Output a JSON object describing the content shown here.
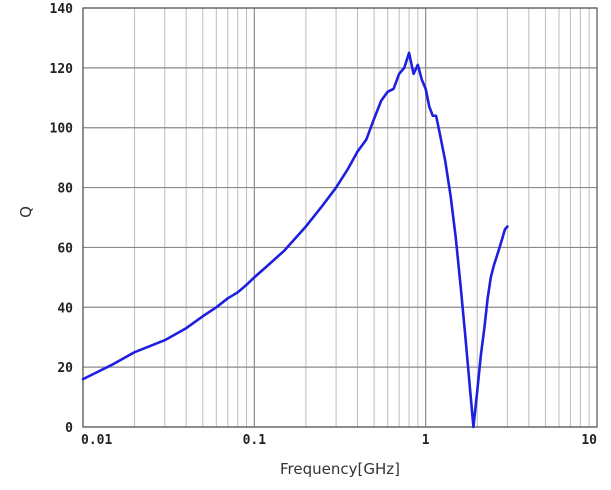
{
  "chart_data": {
    "type": "line",
    "title": "",
    "xlabel": "Frequency[GHz]",
    "ylabel": "Q",
    "x_scale": "log",
    "xlim": [
      0.01,
      10
    ],
    "ylim": [
      0,
      140
    ],
    "x_ticks": [
      "0.01",
      "0.1",
      "1",
      "10"
    ],
    "y_ticks": [
      "0",
      "20",
      "40",
      "60",
      "80",
      "100",
      "120",
      "140"
    ],
    "grid": true,
    "series": [
      {
        "color": "#1f1fe0",
        "x": [
          0.01,
          0.015,
          0.02,
          0.03,
          0.04,
          0.05,
          0.06,
          0.07,
          0.08,
          0.09,
          0.1,
          0.12,
          0.15,
          0.2,
          0.25,
          0.3,
          0.35,
          0.4,
          0.45,
          0.5,
          0.55,
          0.6,
          0.65,
          0.7,
          0.75,
          0.8,
          0.85,
          0.9,
          0.95,
          1.0,
          1.05,
          1.1,
          1.15,
          1.2,
          1.3,
          1.4,
          1.5,
          1.6,
          1.7,
          1.8,
          1.9,
          2.0,
          2.1,
          2.2,
          2.3,
          2.4,
          2.5,
          2.6,
          2.7,
          2.8,
          2.9,
          3.0
        ],
        "y": [
          16,
          21,
          25,
          29,
          33,
          37,
          40,
          43,
          45,
          47.5,
          50,
          54,
          59,
          67,
          74,
          80,
          86,
          92,
          96,
          103,
          109,
          112,
          113,
          118,
          120,
          125,
          118,
          121,
          116,
          113,
          107,
          104,
          104,
          99,
          89,
          77,
          63,
          47,
          31,
          15,
          0,
          12,
          24,
          33,
          43,
          50,
          54,
          57,
          60,
          63,
          66,
          67
        ]
      }
    ]
  }
}
